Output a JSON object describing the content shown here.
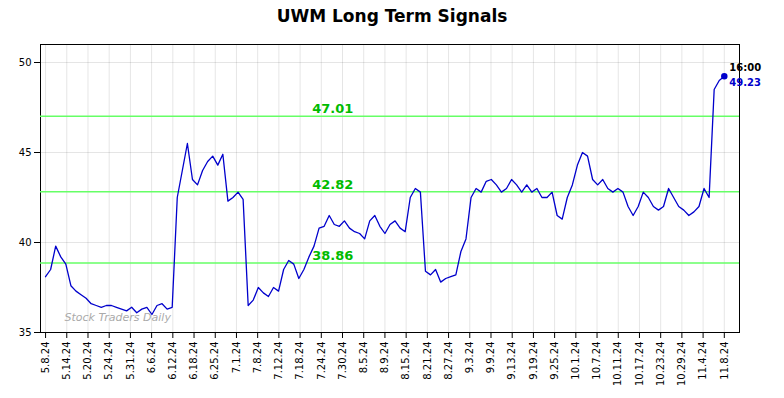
{
  "chart_data": {
    "type": "line",
    "title": "UWM Long Term Signals",
    "x": [
      0,
      1,
      2,
      3,
      4,
      5,
      6,
      7,
      8,
      9,
      10,
      11,
      12,
      13,
      14,
      15,
      16,
      17,
      18,
      19,
      20,
      21,
      22,
      23,
      24,
      25,
      26,
      27,
      28,
      29,
      30,
      31,
      32,
      33,
      34,
      35,
      36,
      37,
      38,
      39,
      40,
      41,
      42,
      43,
      44,
      45,
      46,
      47,
      48,
      49,
      50,
      51,
      52,
      53,
      54,
      55,
      56,
      57,
      58,
      59,
      60,
      61,
      62,
      63,
      64,
      65,
      66,
      67,
      68,
      69,
      70,
      71,
      72,
      73,
      74,
      75,
      76,
      77,
      78,
      79,
      80,
      81,
      82,
      83,
      84,
      85,
      86,
      87,
      88,
      89,
      90,
      91,
      92,
      93,
      94,
      95,
      96,
      97,
      98,
      99,
      100,
      101,
      102,
      103,
      104,
      105,
      106,
      107,
      108,
      109,
      110,
      111,
      112,
      113,
      114,
      115,
      116,
      117,
      118,
      119,
      120,
      121,
      122,
      123,
      124,
      125,
      126,
      127,
      128,
      129,
      130,
      131,
      132,
      133,
      134
    ],
    "values": [
      38.1,
      38.5,
      39.8,
      39.2,
      38.8,
      37.6,
      37.3,
      37.1,
      36.9,
      36.6,
      36.5,
      36.4,
      36.5,
      36.5,
      36.4,
      36.3,
      36.2,
      36.4,
      36.1,
      36.3,
      36.4,
      36.0,
      36.5,
      36.6,
      36.3,
      36.4,
      42.5,
      44.0,
      45.5,
      43.5,
      43.2,
      44.0,
      44.5,
      44.8,
      44.3,
      44.9,
      42.3,
      42.5,
      42.8,
      42.4,
      36.5,
      36.8,
      37.5,
      37.2,
      37.0,
      37.5,
      37.3,
      38.5,
      39.0,
      38.8,
      38.0,
      38.5,
      39.2,
      39.8,
      40.8,
      40.9,
      41.5,
      41.0,
      40.9,
      41.2,
      40.8,
      40.6,
      40.5,
      40.2,
      41.2,
      41.5,
      40.9,
      40.5,
      41.0,
      41.2,
      40.8,
      40.6,
      42.5,
      43.0,
      42.8,
      38.4,
      38.2,
      38.5,
      37.8,
      38.0,
      38.1,
      38.2,
      39.5,
      40.2,
      42.5,
      43.0,
      42.8,
      43.4,
      43.5,
      43.2,
      42.8,
      43.0,
      43.5,
      43.2,
      42.8,
      43.2,
      42.8,
      43.0,
      42.5,
      42.5,
      42.8,
      41.5,
      41.3,
      42.5,
      43.2,
      44.3,
      45.0,
      44.8,
      43.5,
      43.2,
      43.5,
      43.0,
      42.8,
      43.0,
      42.8,
      42.0,
      41.5,
      42.0,
      42.8,
      42.5,
      42.0,
      41.8,
      42.0,
      43.0,
      42.5,
      42.0,
      41.8,
      41.5,
      41.7,
      42.0,
      43.0,
      42.5,
      48.5,
      49.0,
      49.23
    ],
    "color": "#0000cc",
    "xlim": [
      -1,
      137
    ],
    "xticks": [
      {
        "value": 0,
        "label": "5.8.24"
      },
      {
        "value": 4.1875,
        "label": "5.14.24"
      },
      {
        "value": 8.375,
        "label": "5.20.24"
      },
      {
        "value": 12.5625,
        "label": "5.24.24"
      },
      {
        "value": 16.75,
        "label": "5.31.24"
      },
      {
        "value": 20.9375,
        "label": "6.6.24"
      },
      {
        "value": 25.125,
        "label": "6.12.24"
      },
      {
        "value": 29.3125,
        "label": "6.18.24"
      },
      {
        "value": 33.5,
        "label": "6.25.24"
      },
      {
        "value": 37.6875,
        "label": "7.1.24"
      },
      {
        "value": 41.875,
        "label": "7.8.24"
      },
      {
        "value": 46.0625,
        "label": "7.12.24"
      },
      {
        "value": 50.25,
        "label": "7.18.24"
      },
      {
        "value": 54.4375,
        "label": "7.24.24"
      },
      {
        "value": 58.625,
        "label": "7.30.24"
      },
      {
        "value": 62.8125,
        "label": "8.5.24"
      },
      {
        "value": 67,
        "label": "8.9.24"
      },
      {
        "value": 71.1875,
        "label": "8.15.24"
      },
      {
        "value": 75.375,
        "label": "8.21.24"
      },
      {
        "value": 79.5625,
        "label": "8.27.24"
      },
      {
        "value": 83.75,
        "label": "9.3.24"
      },
      {
        "value": 87.9375,
        "label": "9.9.24"
      },
      {
        "value": 92.125,
        "label": "9.13.24"
      },
      {
        "value": 96.3125,
        "label": "9.19.24"
      },
      {
        "value": 100.5,
        "label": "9.25.24"
      },
      {
        "value": 104.6875,
        "label": "10.1.24"
      },
      {
        "value": 108.875,
        "label": "10.7.24"
      },
      {
        "value": 113.0625,
        "label": "10.11.24"
      },
      {
        "value": 117.25,
        "label": "10.17.24"
      },
      {
        "value": 121.4375,
        "label": "10.23.24"
      },
      {
        "value": 125.625,
        "label": "10.29.24"
      },
      {
        "value": 129.8125,
        "label": "11.4.24"
      },
      {
        "value": 134,
        "label": "11.8.24"
      }
    ],
    "ylim": [
      35,
      51
    ],
    "yticks": [
      35,
      40,
      45,
      50
    ],
    "grid": true,
    "hlines": [
      38.86,
      42.82,
      47.01
    ],
    "hline_labels": [
      "38.86",
      "42.82",
      "47.01"
    ],
    "hline_color": "#66ff66",
    "annotation_color": "#00bb00",
    "last_label": "16:00",
    "last_label_color": "#000000",
    "last_value": "49.23",
    "last_value_color": "#0000cc",
    "watermark": "Stock Traders Daily"
  }
}
